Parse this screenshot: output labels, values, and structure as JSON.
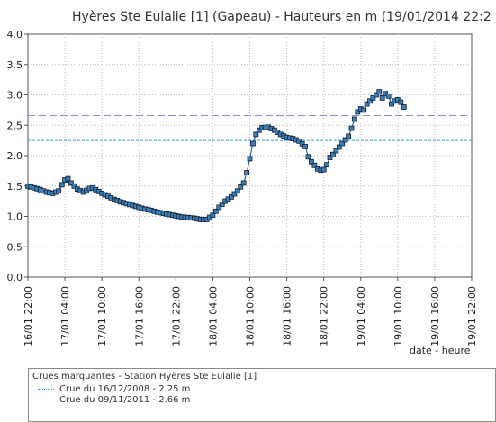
{
  "chart_data": {
    "type": "line",
    "title": "Hyères Ste Eulalie [1] (Gapeau) - Hauteurs en m (19/01/2014 22:2",
    "xlabel": "date - heure",
    "ylabel": "",
    "ylim": [
      0,
      4.0
    ],
    "yticks": [
      "0.0",
      "0.5",
      "1.0",
      "1.5",
      "2.0",
      "2.5",
      "3.0",
      "3.5",
      "4.0"
    ],
    "xlim_hours": [
      0,
      72
    ],
    "x_tick_labels": [
      "16/01 22:00",
      "17/01 04:00",
      "17/01 10:00",
      "17/01 16:00",
      "17/01 22:00",
      "18/01 04:00",
      "18/01 10:00",
      "18/01 16:00",
      "18/01 22:00",
      "19/01 04:00",
      "19/01 10:00",
      "19/01 16:00",
      "19/01 22:00"
    ],
    "grid": true,
    "series": [
      {
        "name": "",
        "color": "#1f4a7a",
        "marker": "square",
        "points": [
          [
            0,
            1.5
          ],
          [
            1,
            1.47
          ],
          [
            2,
            1.44
          ],
          [
            3,
            1.4
          ],
          [
            4,
            1.38
          ],
          [
            5,
            1.42
          ],
          [
            5.5,
            1.52
          ],
          [
            6,
            1.6
          ],
          [
            6.5,
            1.62
          ],
          [
            7,
            1.55
          ],
          [
            8,
            1.45
          ],
          [
            9,
            1.4
          ],
          [
            10,
            1.46
          ],
          [
            10.5,
            1.47
          ],
          [
            11,
            1.44
          ],
          [
            12,
            1.38
          ],
          [
            13,
            1.33
          ],
          [
            14,
            1.28
          ],
          [
            15,
            1.24
          ],
          [
            16,
            1.21
          ],
          [
            17,
            1.18
          ],
          [
            18,
            1.15
          ],
          [
            19,
            1.12
          ],
          [
            20,
            1.1
          ],
          [
            21,
            1.07
          ],
          [
            22,
            1.05
          ],
          [
            23,
            1.03
          ],
          [
            24,
            1.01
          ],
          [
            25,
            0.99
          ],
          [
            26,
            0.98
          ],
          [
            27,
            0.97
          ],
          [
            28,
            0.95
          ],
          [
            29,
            0.95
          ],
          [
            30,
            1.02
          ],
          [
            31,
            1.15
          ],
          [
            32,
            1.25
          ],
          [
            33,
            1.32
          ],
          [
            34,
            1.42
          ],
          [
            35,
            1.55
          ],
          [
            35.5,
            1.72
          ],
          [
            36,
            1.95
          ],
          [
            36.5,
            2.2
          ],
          [
            37,
            2.35
          ],
          [
            37.5,
            2.42
          ],
          [
            38,
            2.46
          ],
          [
            39,
            2.47
          ],
          [
            40,
            2.42
          ],
          [
            41,
            2.35
          ],
          [
            42,
            2.3
          ],
          [
            43,
            2.28
          ],
          [
            44,
            2.24
          ],
          [
            45,
            2.15
          ],
          [
            45.5,
            1.98
          ],
          [
            46,
            1.9
          ],
          [
            47,
            1.78
          ],
          [
            47.5,
            1.76
          ],
          [
            48,
            1.77
          ],
          [
            48.5,
            1.85
          ],
          [
            49,
            1.97
          ],
          [
            49.5,
            2.02
          ],
          [
            50,
            2.08
          ],
          [
            51,
            2.2
          ],
          [
            52,
            2.32
          ],
          [
            52.5,
            2.45
          ],
          [
            53,
            2.6
          ],
          [
            53.5,
            2.72
          ],
          [
            54,
            2.77
          ],
          [
            54.5,
            2.75
          ],
          [
            55,
            2.85
          ],
          [
            55.5,
            2.9
          ],
          [
            56,
            2.95
          ],
          [
            56.5,
            3.0
          ],
          [
            57,
            3.05
          ],
          [
            57.5,
            2.95
          ],
          [
            58,
            3.02
          ],
          [
            58.5,
            2.98
          ],
          [
            59,
            2.85
          ],
          [
            59.5,
            2.9
          ],
          [
            60,
            2.92
          ],
          [
            60.5,
            2.88
          ],
          [
            61,
            2.8
          ]
        ]
      }
    ],
    "reference_lines": [
      {
        "label": "Crue du 16/12/2008 - 2.25 m",
        "value": 2.25,
        "color": "#33a3c9",
        "dash": "dotted"
      },
      {
        "label": "Crue du 09/11/2011 - 2.66 m",
        "value": 2.66,
        "color": "#8a8ad6",
        "dash": "dashed"
      }
    ],
    "legend": {
      "title": "Crues marquantes - Station Hyères Ste Eulalie [1]",
      "placement": "bottom"
    }
  }
}
